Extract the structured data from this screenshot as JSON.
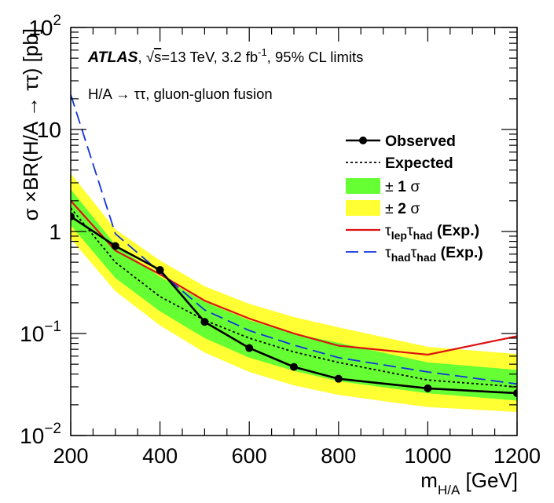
{
  "chart_data": {
    "type": "line",
    "title": "ATLAS, √s=13 TeV, 3.2 fb-1, 95% CL limits",
    "title_parts": {
      "experiment": "ATLAS",
      "rest_pre": ", √",
      "sqrt_arg": "s",
      "rest_energy": "=13 TeV, 3.2 fb",
      "lumi_sup": "-1",
      "rest_post": ", 95% CL limits"
    },
    "subtitle": "H/A → ττ, gluon-gluon fusion",
    "xlabel": "m_H/A [GeV]",
    "xlabel_parts": {
      "main": "m",
      "sub": "H/A",
      "unit": " [GeV]"
    },
    "ylabel": "σ ×BR(H/A → ττ) [pb]",
    "xlim": [
      200,
      1200
    ],
    "ylim": [
      0.01,
      100
    ],
    "yscale": "log",
    "x_ticks": [
      200,
      400,
      600,
      800,
      1000,
      1200
    ],
    "x_tick_labels": [
      "200",
      "400",
      "600",
      "800",
      "1000",
      "1200"
    ],
    "y_tick_labels": [
      {
        "value": 100,
        "base": "10",
        "exp": "2"
      },
      {
        "value": 10,
        "base": "10",
        "exp": ""
      },
      {
        "value": 1,
        "base": "1",
        "exp": ""
      },
      {
        "value": 0.1,
        "base": "10",
        "exp": "−1"
      },
      {
        "value": 0.01,
        "base": "10",
        "exp": "−2"
      }
    ],
    "x": [
      200,
      300,
      400,
      500,
      600,
      700,
      800,
      1000,
      1200
    ],
    "band_2sigma": {
      "low": [
        0.85,
        0.26,
        0.12,
        0.065,
        0.042,
        0.031,
        0.025,
        0.019,
        0.017
      ],
      "high": [
        3.7,
        1.05,
        0.52,
        0.29,
        0.195,
        0.145,
        0.115,
        0.074,
        0.063
      ],
      "color": "#ffff33"
    },
    "band_1sigma": {
      "low": [
        1.15,
        0.35,
        0.165,
        0.09,
        0.058,
        0.043,
        0.034,
        0.026,
        0.022
      ],
      "high": [
        2.6,
        0.74,
        0.36,
        0.205,
        0.135,
        0.1,
        0.081,
        0.052,
        0.044
      ],
      "color": "#66ff33"
    },
    "series": [
      {
        "key": "observed",
        "values": [
          1.4,
          0.72,
          0.42,
          0.13,
          0.072,
          0.047,
          0.036,
          0.029,
          0.026
        ],
        "color": "#000000"
      },
      {
        "key": "expected",
        "values": [
          1.7,
          0.5,
          0.23,
          0.135,
          0.09,
          0.066,
          0.052,
          0.035,
          0.03
        ],
        "color": "#000000"
      },
      {
        "key": "lephad",
        "values": [
          2.0,
          0.65,
          0.38,
          0.21,
          0.14,
          0.1,
          0.076,
          0.062,
          0.094
        ],
        "color": "#dd1111"
      },
      {
        "key": "hadhad",
        "values": [
          22.0,
          0.95,
          0.4,
          0.17,
          0.107,
          0.077,
          0.058,
          0.042,
          0.032
        ],
        "color": "#1133dd"
      }
    ],
    "legend": {
      "position": "top-right",
      "entries": [
        {
          "key": "observed",
          "text": "Observed"
        },
        {
          "key": "expected",
          "text": "Expected"
        },
        {
          "key": "band_1sigma",
          "prefix": "± ",
          "num": "1",
          "suffix": " σ"
        },
        {
          "key": "band_2sigma",
          "prefix": "± ",
          "num": "2",
          "suffix": " σ"
        },
        {
          "key": "lephad",
          "t1": "τ",
          "s1": "lep",
          "t2": "τ",
          "s2": "had",
          "tail": " (Exp.)"
        },
        {
          "key": "hadhad",
          "t1": "τ",
          "s1": "had",
          "t2": "τ",
          "s2": "had",
          "tail": " (Exp.)"
        }
      ]
    }
  }
}
